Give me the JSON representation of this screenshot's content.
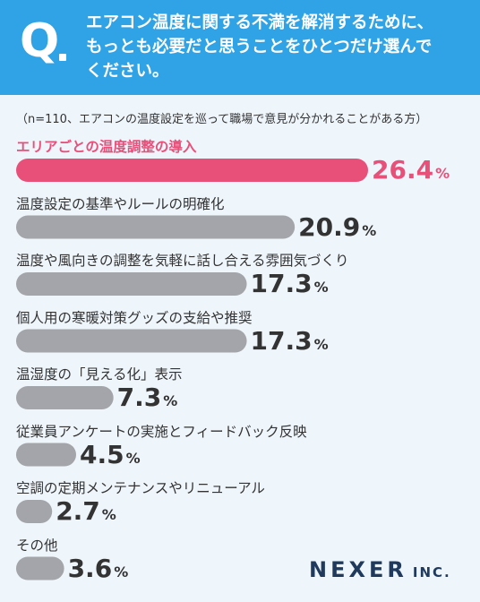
{
  "header": {
    "q_label": "Q",
    "question_lines": [
      "エアコン温度に関する不満を解消するために、",
      "もっとも必要だと思うことをひとつだけ選んで",
      "ください。"
    ]
  },
  "note": "（n=110、エアコンの温度設定を巡って職場で意見が分かれることがある方）",
  "brand": {
    "name": "NEXER",
    "suffix": "INC."
  },
  "colors": {
    "header": "#2fa3e6",
    "highlight": "#e8507a",
    "bar": "#a3a5aa",
    "background": "#eef5fb"
  },
  "chart_data": {
    "type": "bar",
    "orientation": "horizontal",
    "unit": "%",
    "categories": [
      "エリアごとの温度調整の導入",
      "温度設定の基準やルールの明確化",
      "温度や風向きの調整を気軽に話し合える雰囲気づくり",
      "個人用の寒暖対策グッズの支給や推奨",
      "温湿度の「見える化」表示",
      "従業員アンケートの実施とフィードバック反映",
      "空調の定期メンテナンスやリニューアル",
      "その他"
    ],
    "values": [
      26.4,
      20.9,
      17.3,
      17.3,
      7.3,
      4.5,
      2.7,
      3.6
    ],
    "value_labels": [
      "26.4",
      "20.9",
      "17.3",
      "17.3",
      "7.3",
      "4.5",
      "2.7",
      "3.6"
    ],
    "highlight_index": 0
  }
}
